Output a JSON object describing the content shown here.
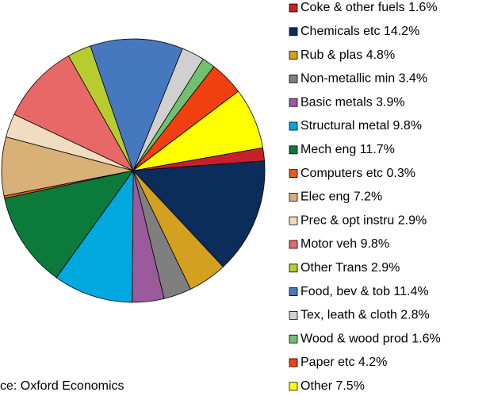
{
  "chart_data": {
    "type": "pie",
    "categories": [
      "Coke & other fuels 1.6%",
      "Chemicals etc 14.2%",
      "Rub & plas  4.8%",
      "Non-metallic min 3.4%",
      "Basic metals 3.9%",
      "Structural metal 9.8%",
      "Mech eng 11.7%",
      "Computers etc 0.3%",
      "Elec eng 7.2%",
      "Prec & opt instru 2.9%",
      "Motor veh 9.8%",
      "Other Trans 2.9%",
      "Food, bev & tob 11.4%",
      "Tex, leath & cloth 2.8%",
      "Wood & wood prod 1.6%",
      "Paper etc 4.2%",
      "Other  7.5%"
    ],
    "values": [
      1.6,
      14.2,
      4.8,
      3.4,
      3.9,
      9.8,
      11.7,
      0.3,
      7.2,
      2.9,
      9.8,
      2.9,
      11.4,
      2.8,
      1.6,
      4.2,
      7.5
    ],
    "colors": [
      "#c8202a",
      "#0b2d5c",
      "#d4a020",
      "#7f7f7f",
      "#9b5a9b",
      "#00a8e0",
      "#0b7a3a",
      "#e06020",
      "#d8b078",
      "#f2dcc0",
      "#e86868",
      "#b8cc30",
      "#4678c0",
      "#d0d0d0",
      "#70c070",
      "#f04010",
      "#ffff00"
    ],
    "source": "ce: Oxford Economics"
  }
}
